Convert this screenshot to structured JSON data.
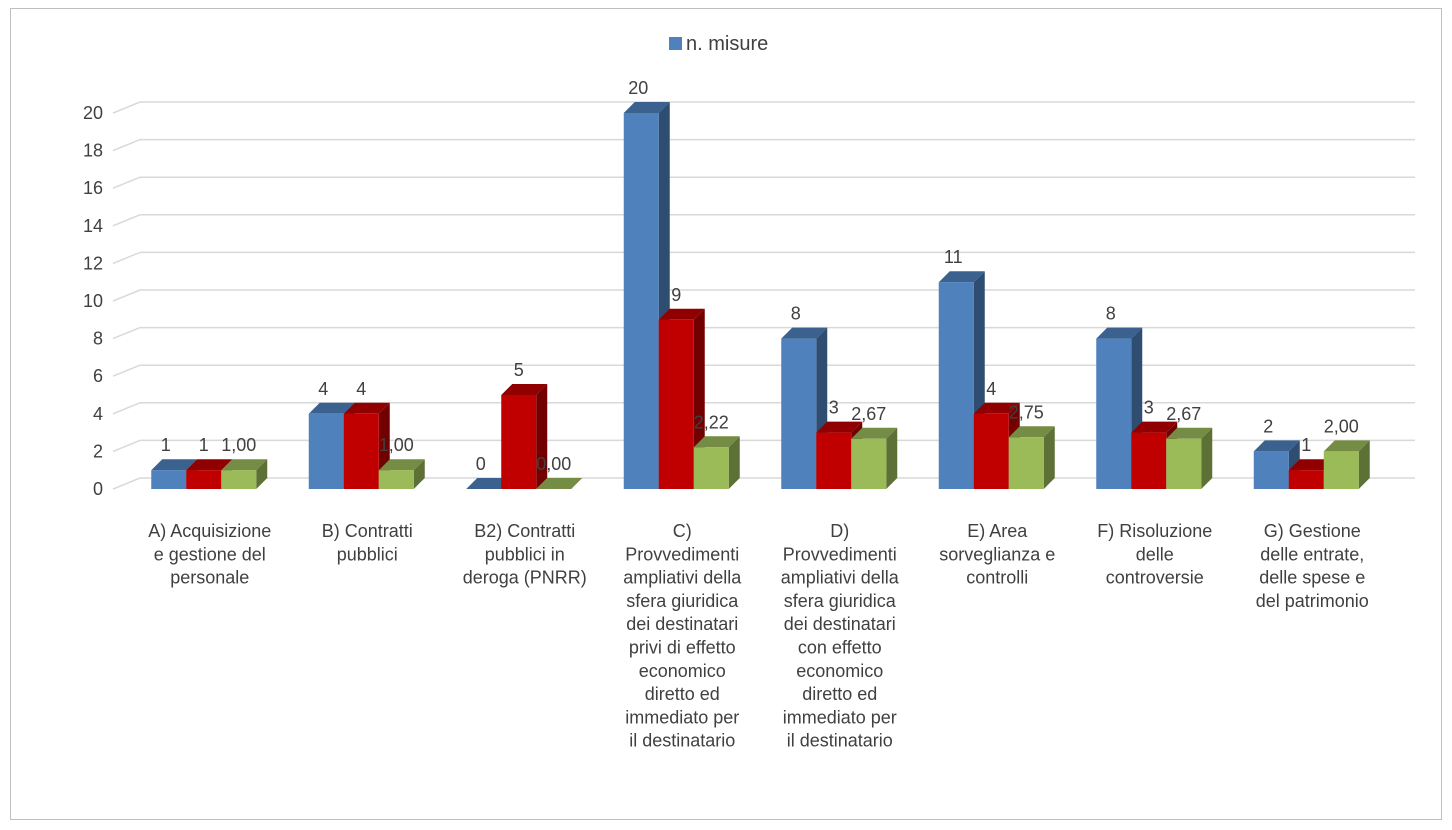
{
  "chart_data": {
    "type": "bar",
    "title": "",
    "xlabel": "",
    "ylabel": "",
    "ylim": [
      0,
      20
    ],
    "yticks": [
      "0",
      "2",
      "4",
      "6",
      "8",
      "10",
      "12",
      "14",
      "16",
      "18",
      "20"
    ],
    "grid": true,
    "legend_position": "top",
    "categories": [
      [
        "A) Acquisizione",
        "e gestione del",
        "personale"
      ],
      [
        "B) Contratti",
        "pubblici"
      ],
      [
        "B2) Contratti",
        "pubblici in",
        "deroga (PNRR)"
      ],
      [
        "C)",
        "Provvedimenti",
        "ampliativi della",
        "sfera giuridica",
        "dei destinatari",
        "privi di effetto",
        "economico",
        "diretto ed",
        "immediato per",
        "il destinatario"
      ],
      [
        "D)",
        "Provvedimenti",
        "ampliativi della",
        "sfera giuridica",
        "dei destinatari",
        "con effetto",
        "economico",
        "diretto ed",
        "immediato per",
        "il destinatario"
      ],
      [
        "E) Area",
        "sorveglianza e",
        "controlli"
      ],
      [
        "F) Risoluzione",
        "delle",
        "controversie"
      ],
      [
        "G) Gestione",
        "delle entrate,",
        "delle spese e",
        "del patrimonio"
      ]
    ],
    "series": [
      {
        "name": "n. misure",
        "color": "#4f81bd",
        "values": [
          1,
          4,
          0,
          20,
          8,
          11,
          8,
          2
        ],
        "labels": [
          "1",
          "4",
          "0",
          "20",
          "8",
          "11",
          "8",
          "2"
        ]
      },
      {
        "color": "#c00000",
        "values": [
          1,
          4,
          5,
          9,
          3,
          4,
          3,
          1
        ],
        "labels": [
          "1",
          "4",
          "5",
          "9",
          "3",
          "4",
          "3",
          "1"
        ]
      },
      {
        "color": "#9bbb59",
        "values": [
          1.0,
          1.0,
          0.0,
          2.22,
          2.67,
          2.75,
          2.67,
          2.0
        ],
        "labels": [
          "1,00",
          "1,00",
          "0,00",
          "2,22",
          "2,67",
          "2,75",
          "2,67",
          "2,00"
        ]
      }
    ]
  }
}
